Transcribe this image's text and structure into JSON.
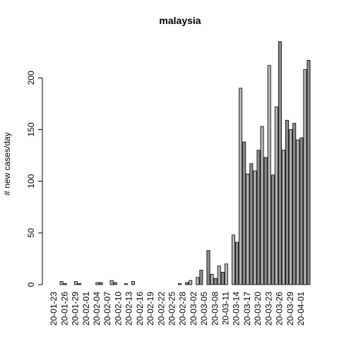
{
  "chart_data": {
    "type": "bar",
    "title": "malaysia",
    "y_label": "# new cases/day",
    "categories": [
      "20-01-23",
      null,
      null,
      "20-01-26",
      null,
      null,
      "20-01-29",
      null,
      null,
      "20-02-01",
      null,
      null,
      "20-02-04",
      null,
      null,
      "20-02-07",
      null,
      null,
      "20-02-10",
      null,
      null,
      "20-02-13",
      null,
      null,
      "20-02-16",
      null,
      null,
      "20-02-19",
      null,
      null,
      "20-02-22",
      null,
      null,
      "20-02-25",
      null,
      null,
      "20-02-28",
      null,
      null,
      "20-03-02",
      null,
      null,
      "20-03-05",
      null,
      null,
      "20-03-08",
      null,
      null,
      "20-03-11",
      null,
      null,
      "20-03-14",
      null,
      null,
      "20-03-17",
      null,
      null,
      "20-03-20",
      null,
      null,
      "20-03-23",
      null,
      null,
      "20-03-26",
      null,
      null,
      "20-03-29",
      null,
      null,
      "20-04-01",
      null,
      null
    ],
    "values": [
      0,
      0,
      3,
      1,
      0,
      0,
      3,
      1,
      0,
      0,
      0,
      0,
      2,
      2,
      0,
      0,
      4,
      2,
      0,
      0,
      1,
      0,
      3,
      0,
      0,
      0,
      0,
      0,
      0,
      0,
      0,
      0,
      0,
      0,
      0,
      1,
      0,
      2,
      4,
      0,
      7,
      14,
      0,
      33,
      10,
      6,
      18,
      12,
      20,
      0,
      48,
      41,
      190,
      138,
      107,
      117,
      110,
      130,
      153,
      123,
      212,
      106,
      172,
      235,
      130,
      159,
      150,
      156,
      140,
      142,
      208,
      217
    ],
    "colors": [
      "#b4b4b4",
      "#8c8c8c"
    ],
    "ylim": [
      0,
      235
    ],
    "yticks": [
      0,
      50,
      100,
      150,
      200
    ]
  }
}
